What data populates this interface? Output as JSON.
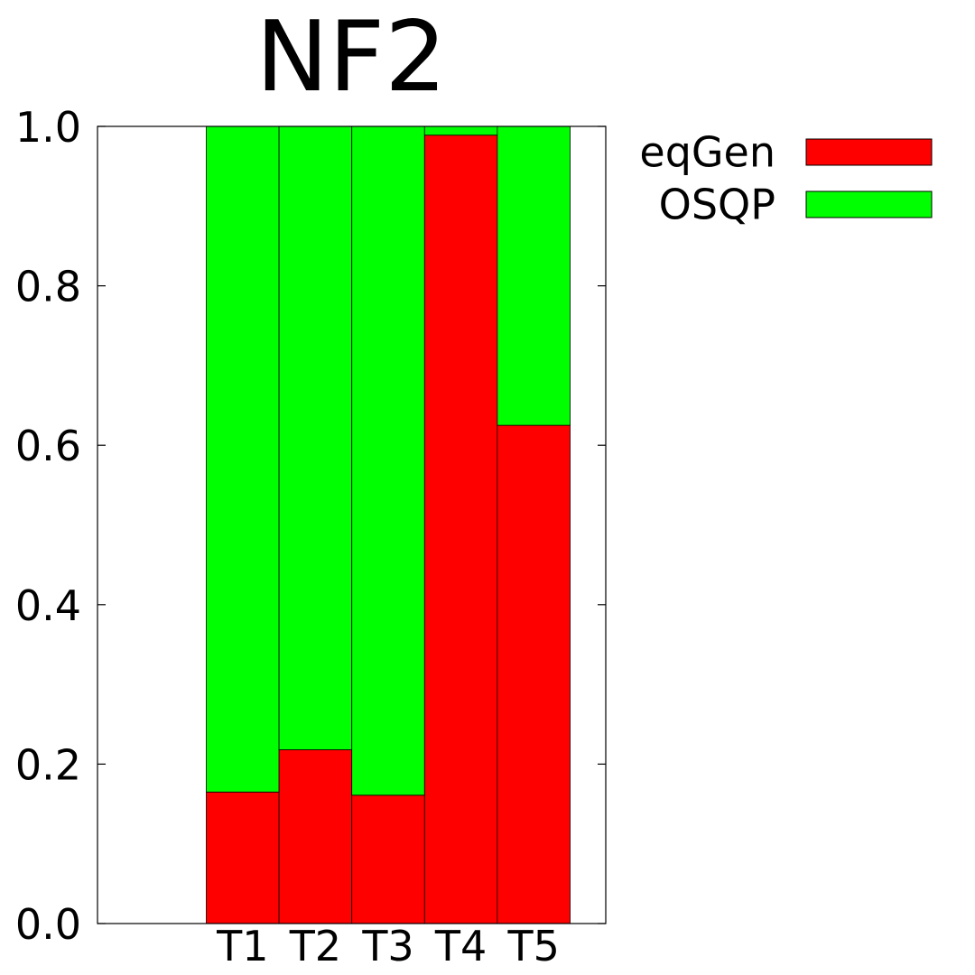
{
  "chart_data": {
    "type": "bar",
    "stacked": true,
    "title": "NF2",
    "xlabel": "",
    "ylabel": "",
    "categories": [
      "T1",
      "T2",
      "T3",
      "T4",
      "T5"
    ],
    "series": [
      {
        "name": "eqGen",
        "color": "#ff0000",
        "values": [
          0.165,
          0.218,
          0.161,
          0.989,
          0.625
        ]
      },
      {
        "name": "OSQP",
        "color": "#00ff00",
        "values": [
          0.835,
          0.782,
          0.839,
          0.011,
          0.375
        ]
      }
    ],
    "ylim": [
      0,
      1.0
    ],
    "yticks": [
      "0.0",
      "0.2",
      "0.4",
      "0.6",
      "0.8",
      "1.0"
    ],
    "grid": false,
    "legend_position": "top-right outside"
  }
}
